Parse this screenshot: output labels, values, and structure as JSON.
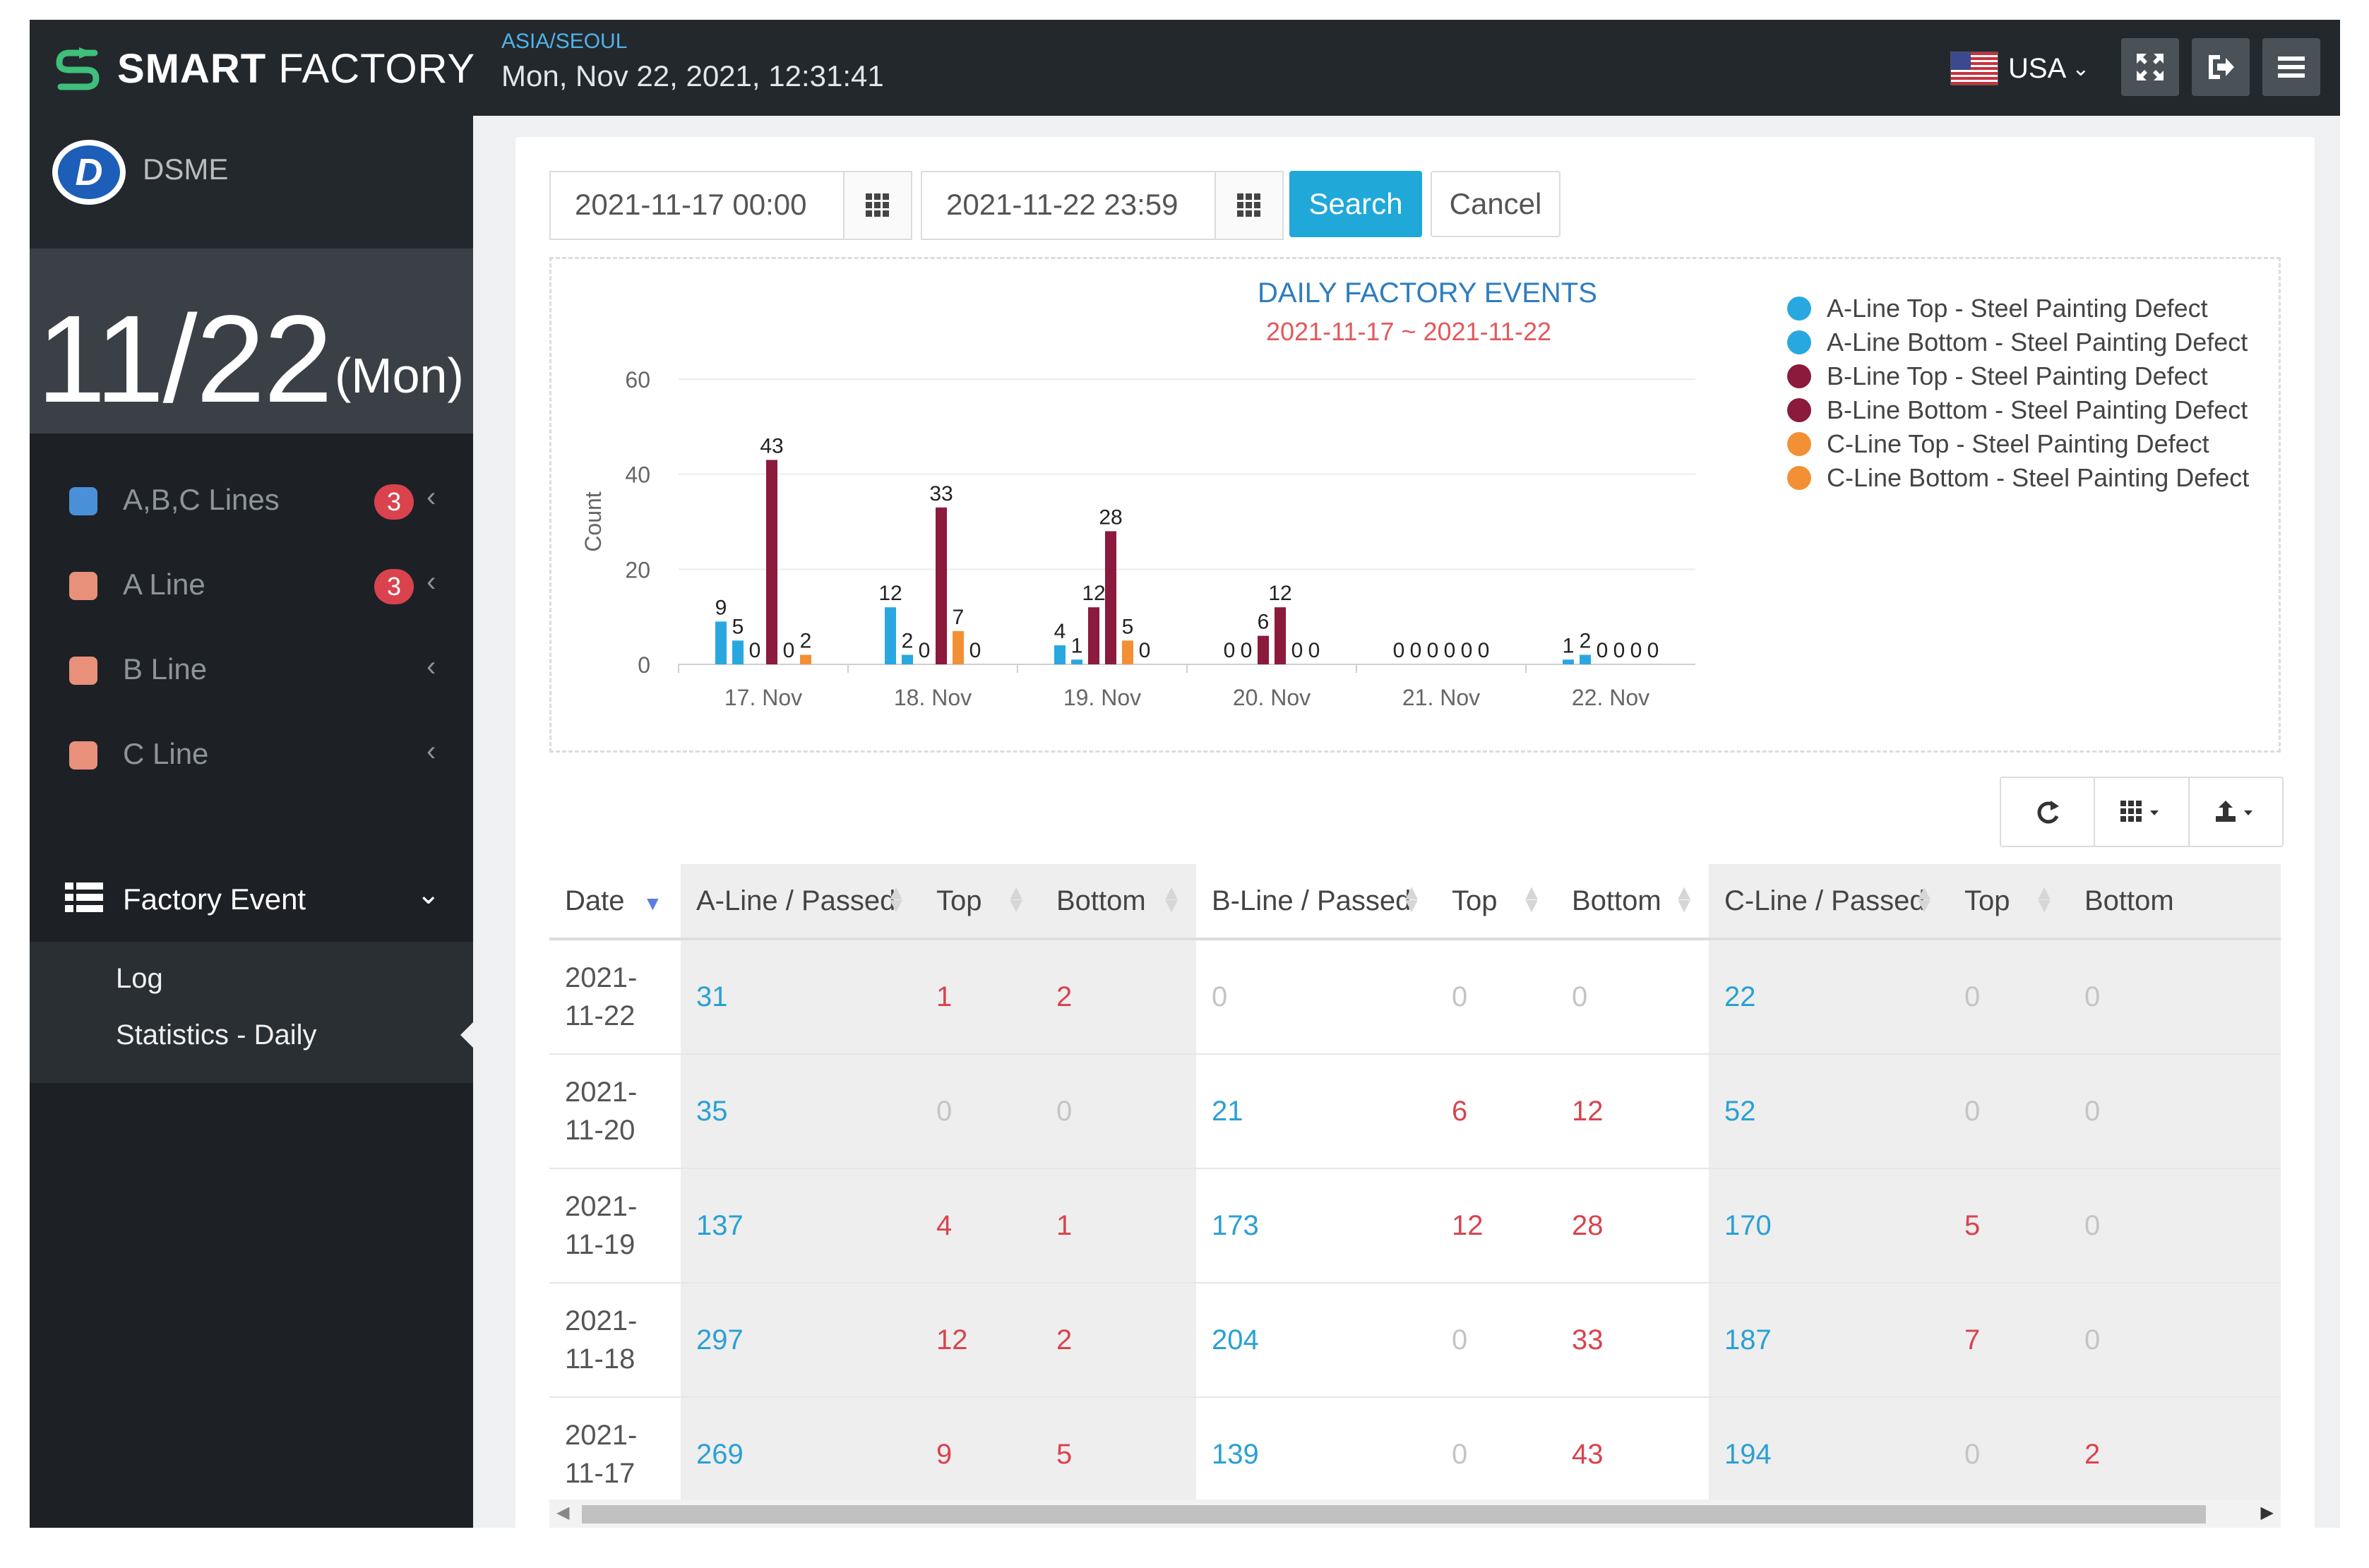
{
  "header": {
    "brand_bold": "SMART",
    "brand_light": "FACTORY",
    "timezone": "ASIA/SEOUL",
    "datetime": "Mon, Nov 22, 2021, 12:31:41",
    "locale": "USA"
  },
  "sidebar": {
    "org": "DSME",
    "date_big": "11/22",
    "date_day": "(Mon)",
    "items": [
      {
        "label": "A,B,C Lines",
        "badge": "3",
        "color": "#4a90d9"
      },
      {
        "label": "A Line",
        "badge": "3",
        "color": "#e8907a"
      },
      {
        "label": "B Line",
        "badge": "",
        "color": "#e8907a"
      },
      {
        "label": "C Line",
        "badge": "",
        "color": "#e8907a"
      }
    ],
    "factory_event": "Factory Event",
    "sub_items": [
      "Log",
      "Statistics - Daily"
    ]
  },
  "filters": {
    "start": "2021-11-17 00:00",
    "end": "2021-11-22 23:59",
    "search_label": "Search",
    "cancel_label": "Cancel"
  },
  "chart_data": {
    "type": "bar",
    "title": "DAILY FACTORY EVENTS",
    "subtitle": "2021-11-17 ~ 2021-11-22",
    "ylabel": "Count",
    "ylim": [
      0,
      60
    ],
    "yticks": [
      0,
      20,
      40,
      60
    ],
    "categories": [
      "17. Nov",
      "18. Nov",
      "19. Nov",
      "20. Nov",
      "21. Nov",
      "22. Nov"
    ],
    "series": [
      {
        "name": "A-Line Top - Steel Painting Defect",
        "color": "#29a8e0",
        "values": [
          9,
          12,
          4,
          0,
          0,
          1
        ]
      },
      {
        "name": "A-Line Bottom - Steel Painting Defect",
        "color": "#29a8e0",
        "values": [
          5,
          2,
          1,
          0,
          0,
          2
        ]
      },
      {
        "name": "B-Line Top - Steel Painting Defect",
        "color": "#8b1a3c",
        "values": [
          0,
          0,
          12,
          6,
          0,
          0
        ]
      },
      {
        "name": "B-Line Bottom - Steel Painting Defect",
        "color": "#8b1a3c",
        "values": [
          43,
          33,
          28,
          12,
          0,
          0
        ]
      },
      {
        "name": "C-Line Top - Steel Painting Defect",
        "color": "#f39035",
        "values": [
          0,
          7,
          5,
          0,
          0,
          0
        ]
      },
      {
        "name": "C-Line Bottom - Steel Painting Defect",
        "color": "#f39035",
        "values": [
          2,
          0,
          0,
          0,
          0,
          0
        ]
      }
    ]
  },
  "table": {
    "columns": [
      "Date",
      "A-Line / Passed",
      "Top",
      "Bottom",
      "B-Line / Passed",
      "Top",
      "Bottom",
      "C-Line / Passed",
      "Top",
      "Bottom"
    ],
    "rows": [
      {
        "date1": "2021-",
        "date2": "11-22",
        "cells": [
          "31",
          "1",
          "2",
          "0",
          "0",
          "0",
          "22",
          "0",
          "0"
        ]
      },
      {
        "date1": "2021-",
        "date2": "11-20",
        "cells": [
          "35",
          "0",
          "0",
          "21",
          "6",
          "12",
          "52",
          "0",
          "0"
        ]
      },
      {
        "date1": "2021-",
        "date2": "11-19",
        "cells": [
          "137",
          "4",
          "1",
          "173",
          "12",
          "28",
          "170",
          "5",
          "0"
        ]
      },
      {
        "date1": "2021-",
        "date2": "11-18",
        "cells": [
          "297",
          "12",
          "2",
          "204",
          "0",
          "33",
          "187",
          "7",
          "0"
        ]
      },
      {
        "date1": "2021-",
        "date2": "11-17",
        "cells": [
          "269",
          "9",
          "5",
          "139",
          "0",
          "43",
          "194",
          "0",
          "2"
        ]
      }
    ]
  }
}
